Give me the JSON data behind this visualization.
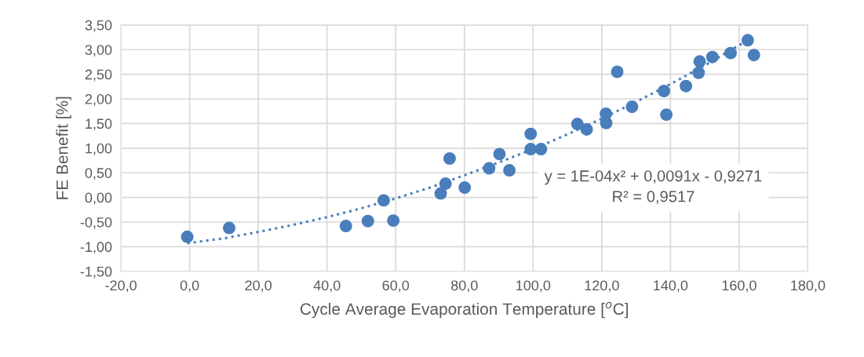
{
  "chart_data": {
    "type": "scatter",
    "xlabel": "Cycle Average Evaporation Temperature [$^{o}$C]",
    "ylabel": "FE Benefit [%]",
    "annotations": [
      "y = 1E-04x² + 0,0091x - 0,9271\nR² = 0,9517"
    ],
    "xlim": [
      -20,
      180
    ],
    "ylim": [
      -1.5,
      3.5
    ],
    "xticks": [
      {
        "value": -20,
        "label": "-20,0"
      },
      {
        "value": 0,
        "label": "0,0"
      },
      {
        "value": 20,
        "label": "20,0"
      },
      {
        "value": 40,
        "label": "40,0"
      },
      {
        "value": 60,
        "label": "60,0"
      },
      {
        "value": 80,
        "label": "80,0"
      },
      {
        "value": 100,
        "label": "100,0"
      },
      {
        "value": 120,
        "label": "120,0"
      },
      {
        "value": 140,
        "label": "140,0"
      },
      {
        "value": 160,
        "label": "160,0"
      },
      {
        "value": 180,
        "label": "180,0"
      }
    ],
    "yticks": [
      {
        "value": -1.5,
        "label": "-1,50"
      },
      {
        "value": -1,
        "label": "-1,00"
      },
      {
        "value": -0.5,
        "label": "-0,50"
      },
      {
        "value": 0,
        "label": "0,00"
      },
      {
        "value": 0.5,
        "label": "0,50"
      },
      {
        "value": 1,
        "label": "1,00"
      },
      {
        "value": 1.5,
        "label": "1,50"
      },
      {
        "value": 2,
        "label": "2,00"
      },
      {
        "value": 2.5,
        "label": "2,50"
      },
      {
        "value": 3,
        "label": "3,00"
      },
      {
        "value": 3.5,
        "label": "3,50"
      }
    ],
    "grid": true,
    "legend": false,
    "series": [
      {
        "marker": "circle",
        "color": "#4a7ebb",
        "x": [
          -0.7,
          11.5,
          45.5,
          51.9,
          56.5,
          59.3,
          73.1,
          74.5,
          75.7,
          80.1,
          87.2,
          90.2,
          93.1,
          99.3,
          99.3,
          102.3,
          112.9,
          115.6,
          121.2,
          121.3,
          124.5,
          128.8,
          138.1,
          138.8,
          144.5,
          148.2,
          148.5,
          152.2,
          157.5,
          162.5,
          164.3
        ],
        "values": [
          -0.8,
          -0.62,
          -0.58,
          -0.48,
          -0.06,
          -0.47,
          0.08,
          0.28,
          0.79,
          0.2,
          0.59,
          0.88,
          0.55,
          1.29,
          0.98,
          0.98,
          1.49,
          1.38,
          1.7,
          1.51,
          2.55,
          1.84,
          2.16,
          1.68,
          2.26,
          2.53,
          2.76,
          2.85,
          2.93,
          3.19,
          2.89
        ]
      },
      {
        "type": "line",
        "marker": "none",
        "line_style": "dotted",
        "color": "#4a7ebb",
        "x": [
          -0.7,
          10,
          20,
          30,
          40,
          50,
          60,
          70,
          80,
          90,
          100,
          110,
          120,
          130,
          140,
          150,
          162.5
        ],
        "values": [
          -0.93,
          -0.83,
          -0.7,
          -0.56,
          -0.4,
          -0.22,
          -0.02,
          0.2,
          0.45,
          0.71,
          0.98,
          1.28,
          1.6,
          1.94,
          2.3,
          2.68,
          3.19
        ]
      }
    ]
  }
}
